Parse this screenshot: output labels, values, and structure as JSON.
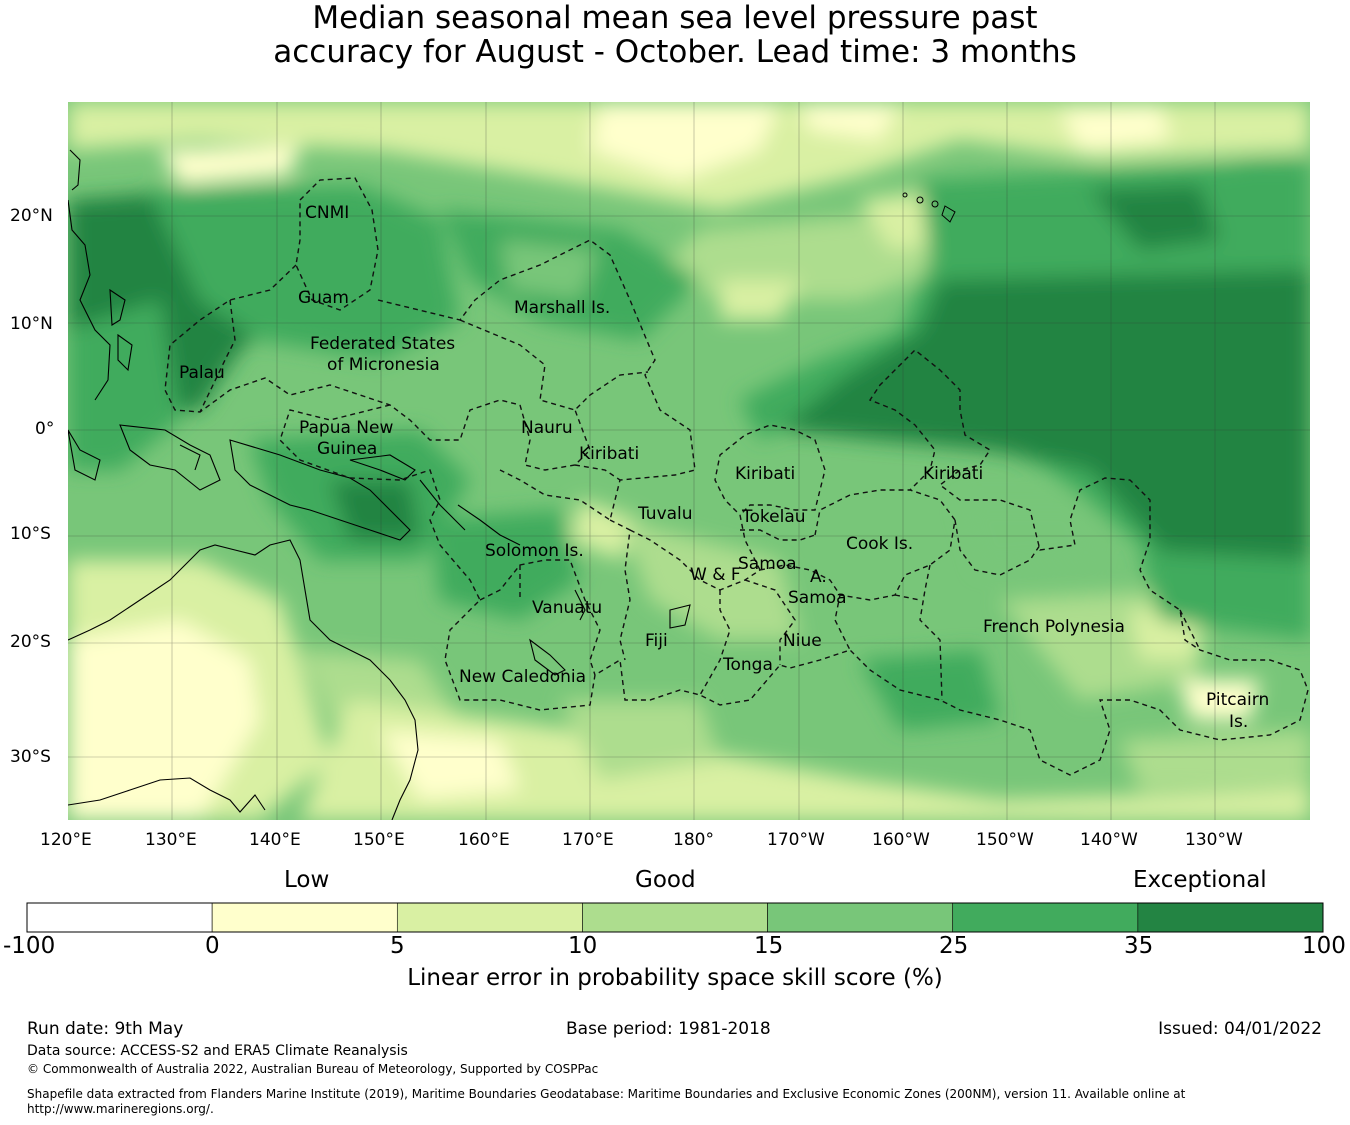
{
  "title_line1": "Median seasonal mean sea level pressure past",
  "title_line2": "accuracy for August - October. Lead time: 3 months",
  "lon_labels": [
    "120°E",
    "130°E",
    "140°E",
    "150°E",
    "160°E",
    "170°E",
    "180°",
    "170°W",
    "160°W",
    "150°W",
    "140°W",
    "130°W"
  ],
  "lat_labels": [
    "20°N",
    "10°N",
    "0°",
    "10°S",
    "20°S",
    "30°S"
  ],
  "regions": [
    "CNMI",
    "Guam",
    "Marshall Is.",
    "Federated States",
    "of Micronesia",
    "Palau",
    "Papua New",
    "Guinea",
    "Nauru",
    "Kiribati",
    "Kiribati",
    "Kiribati",
    "Tuvalu",
    "Tokelau",
    "Solomon Is.",
    "Samoa",
    "W & F",
    "A.",
    "Samoa",
    "Cook Is.",
    "Vanuatu",
    "Fiji",
    "Niue",
    "Tonga",
    "French Polynesia",
    "New Caledonia",
    "Pitcairn",
    "Is."
  ],
  "colorbar": {
    "category_low": "Low",
    "category_good": "Good",
    "category_exceptional": "Exceptional",
    "ticks": [
      "-100",
      "0",
      "5",
      "10",
      "15",
      "25",
      "35",
      "100"
    ],
    "colors": [
      "#ffffff",
      "#ffffcc",
      "#d9f0a3",
      "#addd8e",
      "#78c679",
      "#41ab5d",
      "#238443"
    ],
    "label": "Linear error in probability space skill score (%)"
  },
  "footer": {
    "run_date": "Run date: 9th May",
    "base_period": "Base period: 1981-2018",
    "issued": "Issued: 04/01/2022",
    "data_source": "Data source: ACCESS-S2 and ERA5 Climate Reanalysis",
    "copyright": "© Commonwealth of Australia 2022, Australian Bureau of Meteorology, Supported by COSPPac",
    "shapefile_line1": "Shapefile data extracted from Flanders Marine Institute (2019), Maritime Boundaries Geodatabase: Maritime Boundaries and Exclusive Economic Zones (200NM), version 11. Available online at",
    "shapefile_line2": "http://www.marineregions.org/."
  }
}
